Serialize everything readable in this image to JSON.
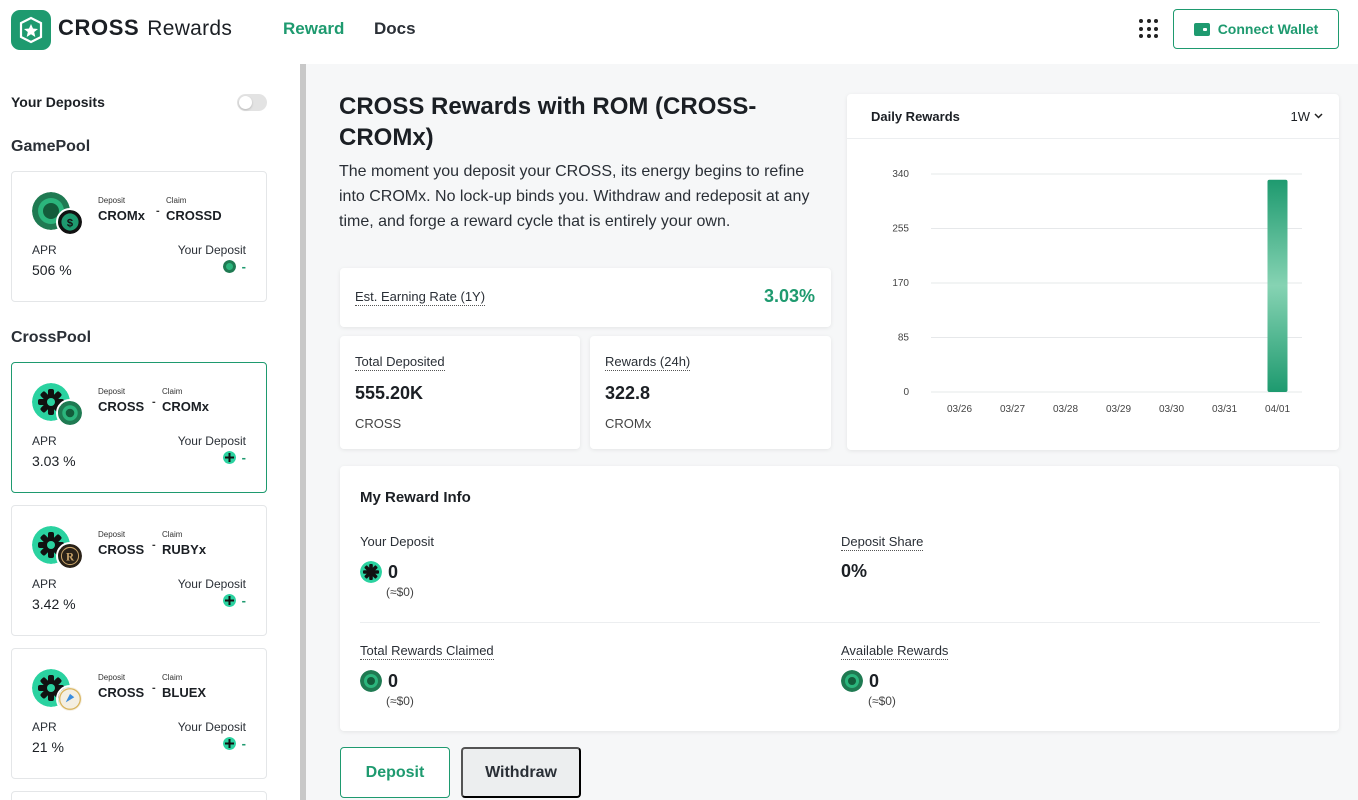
{
  "header": {
    "brand_bold": "CROSS",
    "brand_light": "Rewards",
    "nav": [
      "Reward",
      "Docs"
    ],
    "connect_label": "Connect Wallet",
    "accent": "#1e9a6f"
  },
  "sidebar": {
    "your_deposits_label": "Your Deposits",
    "sections": [
      {
        "title": "GamePool",
        "pools": [
          {
            "deposit_label": "Deposit",
            "deposit_token": "CROMx",
            "claim_label": "Claim",
            "claim_token": "CROSSD",
            "apr_label": "APR",
            "apr": "506 %",
            "your_deposit_label": "Your Deposit",
            "your_deposit": "-",
            "icon_main": "cromx-icon",
            "icon_sub": "crossd-icon"
          }
        ]
      },
      {
        "title": "CrossPool",
        "pools": [
          {
            "deposit_label": "Deposit",
            "deposit_token": "CROSS",
            "claim_label": "Claim",
            "claim_token": "CROMx",
            "apr_label": "APR",
            "apr": "3.03 %",
            "your_deposit_label": "Your Deposit",
            "your_deposit": "-",
            "icon_main": "cross-icon",
            "icon_sub": "cromx-icon",
            "selected": true
          },
          {
            "deposit_label": "Deposit",
            "deposit_token": "CROSS",
            "claim_label": "Claim",
            "claim_token": "RUBYx",
            "apr_label": "APR",
            "apr": "3.42 %",
            "your_deposit_label": "Your Deposit",
            "your_deposit": "-",
            "icon_main": "cross-icon",
            "icon_sub": "rubyx-icon"
          },
          {
            "deposit_label": "Deposit",
            "deposit_token": "CROSS",
            "claim_label": "Claim",
            "claim_token": "BLUEX",
            "apr_label": "APR",
            "apr": "21 %",
            "your_deposit_label": "Your Deposit",
            "your_deposit": "-",
            "icon_main": "cross-icon",
            "icon_sub": "bluex-icon"
          }
        ]
      }
    ]
  },
  "main": {
    "title": "CROSS Rewards with ROM (CROSS-CROMx)",
    "description": "The moment you deposit your CROSS, its energy begins to refine into CROMx. No lock-up binds you. Withdraw and redeposit at any time, and forge a reward cycle that is entirely your own.",
    "earning_label": "Est. Earning Rate (1Y)",
    "earning_value": "3.03%",
    "total_deposited_label": "Total Deposited",
    "total_deposited_value": "555.20K",
    "total_deposited_unit": "CROSS",
    "rewards_label": "Rewards (24h)",
    "rewards_value": "322.8",
    "rewards_unit": "CROMx"
  },
  "chart": {
    "title": "Daily Rewards",
    "period": "1W"
  },
  "chart_data": {
    "type": "bar",
    "categories": [
      "03/26",
      "03/27",
      "03/28",
      "03/29",
      "03/30",
      "03/31",
      "04/01"
    ],
    "values": [
      0,
      0,
      0,
      0,
      0,
      0,
      331
    ],
    "yticks": [
      0,
      85,
      170,
      255,
      340
    ],
    "ylim": [
      0,
      340
    ],
    "grid": true,
    "bar_color": "#1e9a6f"
  },
  "reward_info": {
    "title": "My Reward Info",
    "your_deposit_label": "Your Deposit",
    "your_deposit_value": "0",
    "your_deposit_usd": "(≈$0)",
    "deposit_share_label": "Deposit Share",
    "deposit_share_value": "0%",
    "total_claimed_label": "Total Rewards Claimed",
    "total_claimed_value": "0",
    "total_claimed_usd": "(≈$0)",
    "available_label": "Available Rewards",
    "available_value": "0",
    "available_usd": "(≈$0)"
  },
  "tabs": {
    "deposit": "Deposit",
    "withdraw": "Withdraw"
  }
}
